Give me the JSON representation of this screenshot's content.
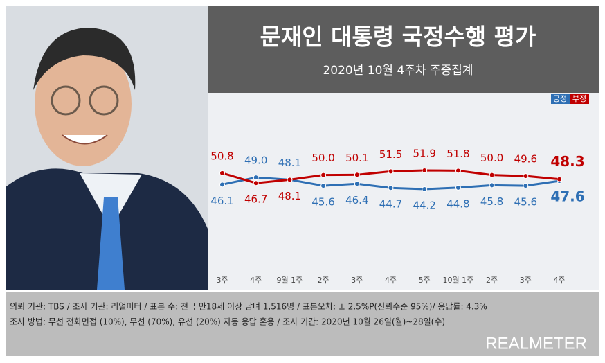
{
  "chart_data": {
    "type": "line",
    "title": "문재인 대통령 국정수행 평가",
    "subtitle": "2020년 10월 4주차 주중집계",
    "categories": [
      "3주",
      "4주",
      "9월 1주",
      "2주",
      "3주",
      "4주",
      "5주",
      "10월 1주",
      "2주",
      "3주",
      "4주"
    ],
    "series": [
      {
        "name": "긍정",
        "color": "#2e6fb4",
        "values": [
          46.1,
          49.0,
          48.1,
          45.6,
          46.4,
          44.7,
          44.2,
          44.8,
          45.8,
          45.6,
          47.6
        ],
        "value_labels": [
          "46.1",
          "49.0",
          "48.1",
          "45.6",
          "46.4",
          "44.7",
          "44.2",
          "44.8",
          "45.8",
          "45.6",
          "47.6"
        ]
      },
      {
        "name": "부정",
        "color": "#c00000",
        "values": [
          50.8,
          46.7,
          48.1,
          50.0,
          50.1,
          51.5,
          51.9,
          51.8,
          50.0,
          49.6,
          48.3
        ],
        "value_labels": [
          "50.8",
          "46.7",
          "48.1",
          "50.0",
          "50.1",
          "51.5",
          "51.9",
          "51.8",
          "50.0",
          "49.6",
          "48.3"
        ]
      }
    ],
    "footer": [
      "의뢰 기관: TBS / 조사 기관: 리얼미터 / 표본 수: 전국 만18세 이상 남녀 1,516명 / 표본오차: ± 2.5%P(신뢰수준 95%)/ 응답률: 4.3%",
      "조사 방법: 무선 전화면접 (10%), 무선 (70%), 유선 (20%)  자동 응답 혼용 / 조사 기간: 2020년 10월 26일(월)~28일(수)"
    ],
    "brand": "REALMETER"
  }
}
